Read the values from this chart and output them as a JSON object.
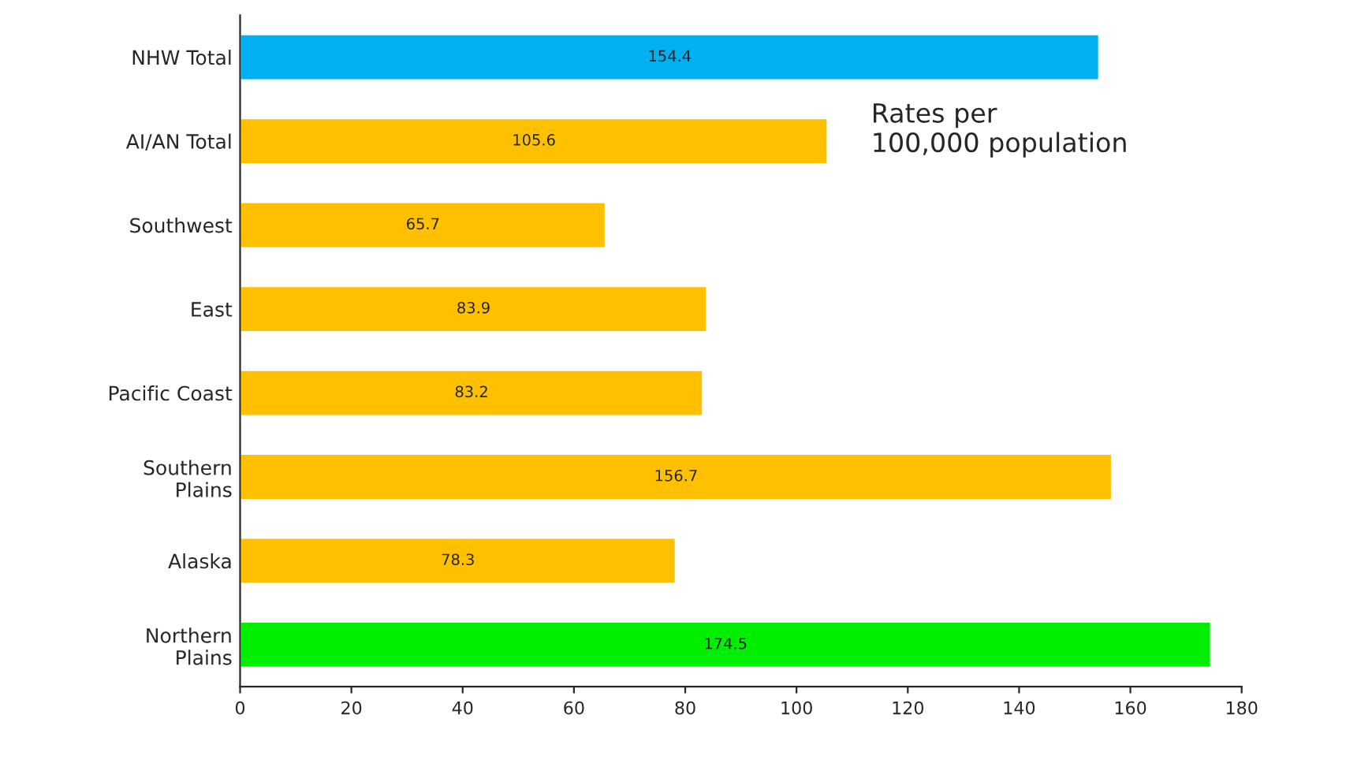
{
  "chart_data": {
    "type": "bar",
    "orientation": "horizontal",
    "categories": [
      "NHW Total",
      "AI/AN Total",
      "Southwest",
      "East",
      "Pacific Coast",
      "Southern\nPlains",
      "Alaska",
      "Northern\nPlains"
    ],
    "values": [
      154.4,
      105.6,
      65.7,
      83.9,
      83.2,
      156.7,
      78.3,
      174.5
    ],
    "colors": [
      "#00b0f0",
      "#ffc000",
      "#ffc000",
      "#ffc000",
      "#ffc000",
      "#ffc000",
      "#ffc000",
      "#00ee00"
    ],
    "xlim": [
      0,
      180
    ],
    "xticks": [
      0,
      20,
      40,
      60,
      80,
      100,
      120,
      140,
      160,
      180
    ],
    "data_labels": true,
    "grid": false,
    "annotations": [
      "Rates per\n100,000 population"
    ]
  }
}
